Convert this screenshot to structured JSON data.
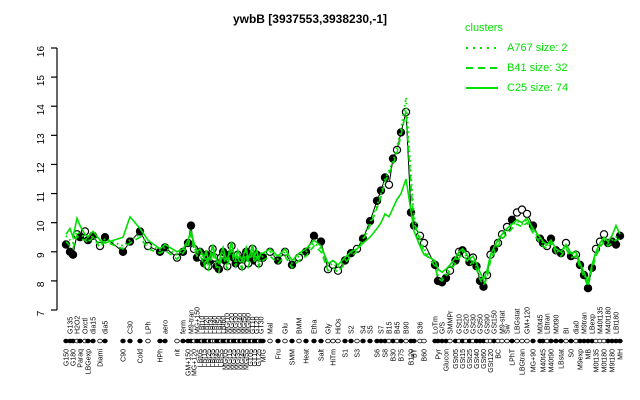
{
  "title": "ywbB [3937553,3938230,-1]",
  "colors": {
    "cluster_green": "#00DF00",
    "point_fill": "#000000",
    "point_open": "#FFFFFF",
    "axis": "#000000"
  },
  "legend": {
    "title": "clusters",
    "entries": [
      {
        "label": "A767 size: 2",
        "style": "dotted"
      },
      {
        "label": "B41 size: 32",
        "style": "dashed"
      },
      {
        "label": "C25 size: 74",
        "style": "solid"
      }
    ]
  },
  "chart_data": {
    "type": "line",
    "title": "ywbB [3937553,3938230,-1]",
    "gene": "ywbB",
    "ylabel": "",
    "ylim": [
      7,
      16
    ],
    "yticks": [
      7,
      8,
      9,
      10,
      11,
      12,
      13,
      14,
      15,
      16
    ],
    "legend_position": "top-right",
    "grid": false,
    "conditions_fields": [
      "x",
      "label",
      "label_row",
      "value",
      "marker"
    ],
    "conditions": [
      [
        66,
        "G150",
        "b",
        9.25,
        "f"
      ],
      [
        70,
        "G135",
        "t",
        9.0,
        "f"
      ],
      [
        73,
        "G180",
        "b",
        8.9,
        "f"
      ],
      [
        77,
        "H2O2",
        "t",
        9.6,
        "o"
      ],
      [
        80,
        "Paraq",
        "b",
        9.5,
        "f"
      ],
      [
        85,
        "Oxctl",
        "t",
        9.7,
        "o"
      ],
      [
        88,
        "LBGexp",
        "b",
        9.4,
        "f"
      ],
      [
        93,
        "dia15",
        "t",
        9.55,
        "f"
      ],
      [
        100,
        "Diami",
        "b",
        9.2,
        "o"
      ],
      [
        105,
        "dia5",
        "t",
        9.5,
        "f"
      ],
      [
        123,
        "C90",
        "b",
        9.0,
        "f"
      ],
      [
        130,
        "C30",
        "t",
        9.35,
        "f"
      ],
      [
        140,
        "Cold",
        "b",
        9.7,
        "f"
      ],
      [
        148,
        "LPh",
        "t",
        9.2,
        "o"
      ],
      [
        160,
        "HPh",
        "b",
        9.0,
        "f"
      ],
      [
        165,
        "aero",
        "t",
        9.15,
        "f"
      ],
      [
        177,
        "nit",
        "b",
        8.8,
        "o"
      ],
      [
        183,
        "ferm",
        "t",
        9.0,
        "f"
      ],
      [
        188,
        "GM+150",
        "b",
        9.3,
        "f"
      ],
      [
        191,
        "M9-tran",
        "t",
        9.9,
        "f"
      ],
      [
        194,
        "MG+120",
        "b",
        9.1,
        "o"
      ],
      [
        197,
        "MG+150",
        "t",
        8.8,
        "f"
      ],
      [
        200,
        "LBt05",
        "b",
        9.0,
        "f"
      ],
      [
        202.1,
        "LBt10",
        "t",
        8.8,
        "o"
      ],
      [
        204.2,
        "LBt15",
        "b",
        8.6,
        "f"
      ],
      [
        206.3,
        "LBt20",
        "t",
        8.9,
        "f"
      ],
      [
        208.4,
        "LBt25",
        "b",
        8.5,
        "o"
      ],
      [
        210.5,
        "LBt30",
        "t",
        8.7,
        "f"
      ],
      [
        212.6,
        "LBt35",
        "b",
        9.1,
        "o"
      ],
      [
        214.7,
        "LBt40",
        "t",
        8.8,
        "o"
      ],
      [
        216.8,
        "LBt45",
        "b",
        8.5,
        "f"
      ],
      [
        218.9,
        "LBt50",
        "t",
        8.4,
        "f"
      ],
      [
        221,
        "LBt55",
        "b",
        8.8,
        "o"
      ],
      [
        223.1,
        "LBt60",
        "t",
        9.0,
        "f"
      ],
      [
        225.2,
        "MGt05",
        "b",
        8.7,
        "f"
      ],
      [
        227.3,
        "MGt10",
        "t",
        8.5,
        "o"
      ],
      [
        229.4,
        "MGt15",
        "b",
        8.9,
        "f"
      ],
      [
        231.5,
        "MGt20",
        "t",
        9.2,
        "o"
      ],
      [
        233.6,
        "MGt25",
        "b",
        8.8,
        "f"
      ],
      [
        235.7,
        "MGt30",
        "t",
        8.6,
        "f"
      ],
      [
        237.8,
        "MGt35",
        "b",
        8.9,
        "o"
      ],
      [
        239.9,
        "MGt40",
        "t",
        8.7,
        "f"
      ],
      [
        242,
        "MGt45",
        "b",
        8.5,
        "o"
      ],
      [
        244.1,
        "MGt50",
        "t",
        8.8,
        "f"
      ],
      [
        246.2,
        "MGt55",
        "b",
        9.0,
        "f"
      ],
      [
        248.3,
        "MGt60",
        "t",
        8.6,
        "o"
      ],
      [
        250.4,
        "GT05",
        "b",
        8.8,
        "f"
      ],
      [
        252.5,
        "GT10",
        "t",
        9.1,
        "o"
      ],
      [
        254.6,
        "GT15",
        "b",
        8.7,
        "f"
      ],
      [
        256.7,
        "GT20",
        "t",
        8.9,
        "f"
      ],
      [
        258.8,
        "GT25",
        "b",
        8.6,
        "o"
      ],
      [
        260.9,
        "GT30",
        "t",
        8.8,
        "f"
      ],
      [
        263,
        "M/G",
        "b",
        8.8,
        "f"
      ],
      [
        270,
        "Mal",
        "t",
        9.0,
        "o"
      ],
      [
        278,
        "Fru",
        "b",
        8.7,
        "f"
      ],
      [
        285,
        "Glu",
        "t",
        9.0,
        "o"
      ],
      [
        292,
        "SMM",
        "b",
        8.55,
        "f"
      ],
      [
        299,
        "BMM",
        "t",
        8.8,
        "o"
      ],
      [
        306,
        "Heat",
        "b",
        9.0,
        "f"
      ],
      [
        314,
        "Etha",
        "t",
        9.55,
        "f"
      ],
      [
        321,
        "Salt",
        "b",
        9.35,
        "f"
      ],
      [
        328,
        "Gly",
        "t",
        8.4,
        "o"
      ],
      [
        333,
        "HiTm",
        "b",
        8.55,
        "o"
      ],
      [
        338,
        "HiOs",
        "t",
        8.35,
        "o"
      ],
      [
        345,
        "S1",
        "b",
        8.7,
        "f"
      ],
      [
        351,
        "S2",
        "t",
        8.95,
        "f"
      ],
      [
        357,
        "S3",
        "b",
        9.1,
        "o"
      ],
      [
        363,
        "S4",
        "t",
        9.45,
        "f"
      ],
      [
        370,
        "S5",
        "t",
        10.05,
        "f"
      ],
      [
        377,
        "S6",
        "b",
        10.75,
        "f"
      ],
      [
        381,
        "S7",
        "t",
        11.1,
        "f"
      ],
      [
        385,
        "S8",
        "b",
        11.55,
        "f"
      ],
      [
        389,
        "B15",
        "t",
        11.3,
        "o"
      ],
      [
        393,
        "B30",
        "b",
        12.2,
        "f"
      ],
      [
        397,
        "B45",
        "t",
        12.5,
        "o"
      ],
      [
        401,
        "B75",
        "b",
        13.1,
        "f"
      ],
      [
        406,
        "B90",
        "t",
        13.8,
        "o"
      ],
      [
        411,
        "B120",
        "b",
        10.35,
        "f"
      ],
      [
        414,
        "BT",
        "b",
        9.9,
        "f"
      ],
      [
        420,
        "B36",
        "t",
        9.55,
        "o"
      ],
      [
        424,
        "B60",
        "b",
        9.3,
        "o"
      ],
      [
        435,
        "LoTm",
        "t",
        8.55,
        "f"
      ],
      [
        438,
        "Pyr",
        "b",
        8.0,
        "f"
      ],
      [
        442,
        "G/S",
        "t",
        7.95,
        "f"
      ],
      [
        446,
        "Glucon",
        "b",
        8.1,
        "f"
      ],
      [
        450,
        "SMMPr",
        "t",
        8.35,
        "o"
      ],
      [
        455.5,
        "GSt05",
        "b",
        8.7,
        "f"
      ],
      [
        459,
        "GSt10",
        "t",
        9.0,
        "o"
      ],
      [
        462.5,
        "GSt15",
        "b",
        9.05,
        "f"
      ],
      [
        466,
        "GSt20",
        "t",
        8.9,
        "o"
      ],
      [
        469.5,
        "GSt25",
        "b",
        8.65,
        "f"
      ],
      [
        473,
        "GSt30",
        "t",
        8.8,
        "o"
      ],
      [
        476.5,
        "GSt40",
        "b",
        8.5,
        "f"
      ],
      [
        480,
        "GSt50",
        "t",
        8.0,
        "f"
      ],
      [
        483.5,
        "GSt60",
        "b",
        7.8,
        "f"
      ],
      [
        487,
        "GSt90",
        "t",
        8.2,
        "o"
      ],
      [
        490.5,
        "GSt120",
        "b",
        8.9,
        "o"
      ],
      [
        494,
        "GSt150",
        "t",
        9.1,
        "f"
      ],
      [
        498,
        "BC",
        "b",
        9.3,
        "o"
      ],
      [
        502,
        "M9-stat",
        "t",
        9.6,
        "o"
      ],
      [
        507,
        "Sw",
        "t",
        9.85,
        "o"
      ],
      [
        512,
        "LPhT",
        "b",
        10.1,
        "f"
      ],
      [
        517,
        "LBGstat",
        "t",
        10.35,
        "o"
      ],
      [
        522,
        "LBGtran",
        "b",
        10.45,
        "o"
      ],
      [
        527,
        "GM+120",
        "t",
        10.3,
        "o"
      ],
      [
        533,
        "MG+90",
        "b",
        9.9,
        "f"
      ],
      [
        540,
        "M0t45",
        "t",
        9.45,
        "f"
      ],
      [
        543,
        "M40t45",
        "b",
        9.3,
        "f"
      ],
      [
        547,
        "LBtran",
        "t",
        9.2,
        "o"
      ],
      [
        551,
        "M40t90",
        "b",
        9.45,
        "f"
      ],
      [
        556,
        "M0t90",
        "t",
        9.05,
        "f"
      ],
      [
        561,
        "LBstat",
        "b",
        8.95,
        "f"
      ],
      [
        566,
        "BI",
        "t",
        9.3,
        "o"
      ],
      [
        571,
        "S0",
        "b",
        8.85,
        "f"
      ],
      [
        576,
        "dia0",
        "t",
        8.9,
        "o"
      ],
      [
        580,
        "M9exp",
        "b",
        8.55,
        "f"
      ],
      [
        584,
        "M9tran",
        "t",
        8.2,
        "f"
      ],
      [
        588,
        "MB",
        "b",
        7.75,
        "f"
      ],
      [
        592,
        "LBexp",
        "t",
        8.45,
        "f"
      ],
      [
        596,
        "M0t135",
        "b",
        9.1,
        "o"
      ],
      [
        600,
        "M40t135",
        "t",
        9.35,
        "o"
      ],
      [
        604,
        "M0t180",
        "b",
        9.6,
        "o"
      ],
      [
        608,
        "M40t180",
        "t",
        9.3,
        "f"
      ],
      [
        612,
        "M9t180",
        "b",
        9.35,
        "f"
      ],
      [
        616,
        "LBt180",
        "t",
        9.25,
        "f"
      ],
      [
        620,
        "MH",
        "b",
        9.55,
        "f"
      ]
    ],
    "series": [
      {
        "name": "A767",
        "size": 2,
        "style": "dotted",
        "values": [
          9.55,
          9.4,
          9.3,
          9.7,
          9.6,
          9.5,
          9.35,
          9.55,
          9.25,
          9.45,
          9.2,
          9.4,
          9.6,
          9.25,
          9.05,
          9.15,
          8.9,
          9.05,
          9.3,
          9.7,
          9.15,
          8.95,
          9.0,
          8.8,
          8.6,
          8.9,
          8.5,
          8.7,
          9.1,
          8.8,
          8.5,
          8.4,
          8.8,
          9.0,
          8.7,
          8.5,
          8.9,
          9.2,
          8.8,
          8.6,
          8.9,
          8.7,
          8.5,
          8.8,
          9.0,
          8.6,
          8.8,
          9.1,
          8.7,
          8.9,
          8.6,
          8.8,
          8.85,
          9.0,
          8.75,
          9.0,
          8.6,
          8.85,
          9.0,
          9.3,
          9.1,
          8.5,
          8.6,
          8.45,
          8.7,
          8.95,
          9.1,
          9.45,
          10.0,
          10.6,
          11.0,
          11.5,
          11.8,
          12.1,
          12.6,
          13.2,
          14.3,
          11.6,
          10.2,
          9.5,
          9.1,
          8.6,
          8.2,
          8.1,
          8.25,
          8.45,
          8.7,
          8.9,
          9.0,
          8.85,
          8.65,
          8.75,
          8.5,
          8.15,
          7.95,
          8.2,
          8.8,
          9.05,
          9.3,
          9.55,
          9.7,
          9.9,
          10.05,
          9.95,
          10.1,
          9.75,
          9.4,
          9.3,
          9.2,
          9.35,
          9.05,
          8.95,
          9.2,
          8.9,
          8.95,
          8.55,
          8.25,
          7.9,
          8.5,
          8.95,
          9.25,
          9.45,
          9.3,
          9.4,
          9.5,
          9.5
        ]
      },
      {
        "name": "B41",
        "size": 32,
        "style": "dashed",
        "values": [
          9.35,
          9.2,
          9.1,
          9.55,
          9.45,
          9.4,
          9.3,
          9.5,
          9.15,
          9.35,
          9.1,
          9.3,
          9.5,
          9.1,
          8.95,
          9.05,
          8.75,
          8.95,
          9.2,
          9.6,
          9.05,
          8.85,
          8.9,
          8.7,
          8.5,
          8.8,
          8.4,
          8.6,
          9.0,
          8.7,
          8.4,
          8.3,
          8.7,
          8.9,
          8.6,
          8.4,
          8.8,
          9.1,
          8.7,
          8.5,
          8.8,
          8.6,
          8.4,
          8.7,
          8.9,
          8.5,
          8.7,
          9.0,
          8.6,
          8.8,
          8.5,
          8.7,
          8.7,
          8.85,
          8.6,
          8.85,
          8.45,
          8.7,
          8.85,
          9.2,
          9.0,
          8.35,
          8.45,
          8.3,
          8.6,
          8.85,
          9.0,
          9.4,
          9.9,
          10.5,
          10.9,
          11.4,
          11.7,
          12.0,
          12.4,
          13.0,
          13.85,
          11.2,
          10.0,
          9.4,
          9.0,
          8.5,
          8.1,
          8.0,
          8.15,
          8.35,
          8.6,
          8.8,
          8.9,
          8.75,
          8.55,
          8.65,
          8.4,
          8.05,
          7.85,
          8.1,
          8.7,
          8.95,
          9.2,
          9.45,
          9.6,
          9.8,
          9.95,
          9.85,
          10.0,
          9.65,
          9.3,
          9.2,
          9.1,
          9.3,
          8.95,
          8.85,
          9.1,
          8.8,
          8.85,
          8.45,
          8.15,
          7.8,
          8.4,
          8.85,
          9.15,
          9.35,
          9.2,
          9.3,
          9.4,
          9.45
        ]
      },
      {
        "name": "C25",
        "size": 74,
        "style": "solid",
        "values": [
          9.6,
          9.8,
          9.5,
          10.15,
          9.9,
          9.6,
          9.5,
          9.7,
          9.4,
          9.3,
          9.5,
          10.2,
          9.8,
          9.4,
          9.1,
          9.25,
          9.0,
          9.1,
          9.4,
          9.7,
          9.3,
          9.0,
          9.1,
          8.95,
          8.8,
          9.05,
          8.7,
          8.9,
          9.25,
          8.95,
          8.7,
          8.6,
          8.95,
          9.15,
          8.85,
          8.7,
          9.05,
          9.35,
          8.95,
          8.75,
          9.05,
          8.85,
          8.7,
          8.95,
          9.15,
          8.75,
          8.95,
          9.25,
          8.85,
          9.05,
          8.75,
          8.95,
          8.95,
          9.1,
          8.85,
          9.1,
          8.7,
          8.95,
          9.1,
          9.4,
          9.2,
          8.6,
          8.7,
          8.55,
          8.8,
          9.0,
          9.1,
          9.3,
          9.5,
          9.8,
          10.0,
          10.3,
          10.2,
          10.5,
          10.8,
          11.0,
          11.5,
          10.4,
          9.7,
          9.2,
          8.9,
          8.7,
          8.4,
          8.3,
          8.4,
          8.55,
          8.8,
          9.0,
          9.1,
          8.95,
          8.75,
          8.85,
          8.6,
          8.3,
          8.05,
          8.35,
          8.9,
          9.15,
          9.4,
          9.6,
          9.8,
          9.95,
          10.1,
          10.0,
          10.15,
          9.8,
          9.5,
          9.35,
          9.25,
          9.4,
          9.1,
          9.0,
          9.25,
          8.95,
          9.0,
          8.6,
          8.3,
          7.95,
          8.55,
          9.0,
          9.3,
          9.5,
          9.35,
          9.55,
          9.9,
          9.6
        ]
      }
    ]
  }
}
